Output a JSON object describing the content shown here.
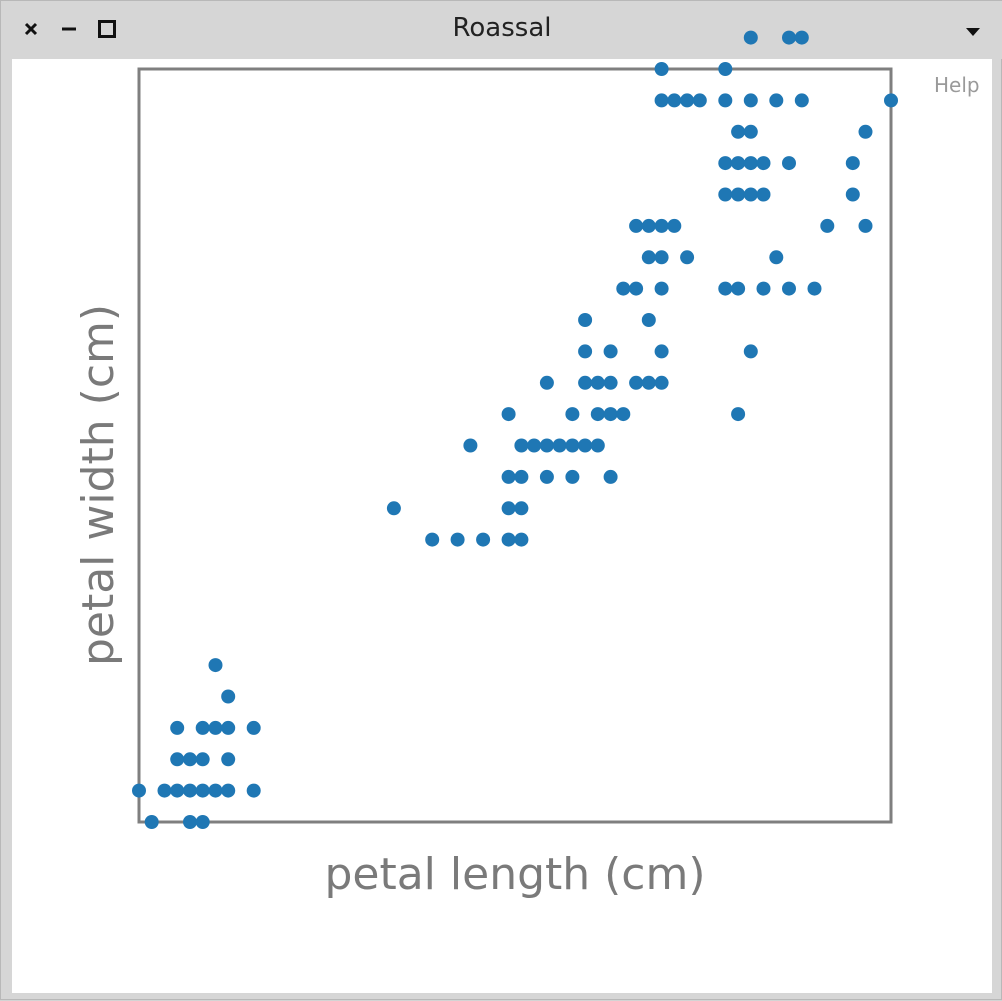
{
  "window": {
    "title": "Roassal",
    "menu_icon": "chevron-down-icon",
    "buttons": [
      "close-icon",
      "minimize-icon",
      "maximize-icon"
    ]
  },
  "help_label": "Help",
  "colors": {
    "point": "#1f77b4",
    "frame": "#7f7f7f",
    "axis_text": "#7a7a7a"
  },
  "chart_data": {
    "type": "scatter",
    "title": "",
    "xlabel": "petal length (cm)",
    "ylabel": "petal width (cm)",
    "xlim": [
      1.0,
      6.9
    ],
    "ylim": [
      0.1,
      2.5
    ],
    "grid": false,
    "tick_labels": false,
    "points": [
      [
        1.0,
        0.2
      ],
      [
        1.1,
        0.1
      ],
      [
        1.2,
        0.2
      ],
      [
        1.3,
        0.2
      ],
      [
        1.4,
        0.2
      ],
      [
        1.5,
        0.2
      ],
      [
        1.6,
        0.2
      ],
      [
        1.7,
        0.2
      ],
      [
        1.9,
        0.2
      ],
      [
        1.4,
        0.1
      ],
      [
        1.5,
        0.1
      ],
      [
        1.3,
        0.3
      ],
      [
        1.4,
        0.3
      ],
      [
        1.5,
        0.3
      ],
      [
        1.7,
        0.3
      ],
      [
        1.3,
        0.4
      ],
      [
        1.5,
        0.4
      ],
      [
        1.6,
        0.4
      ],
      [
        1.7,
        0.4
      ],
      [
        1.9,
        0.4
      ],
      [
        1.7,
        0.5
      ],
      [
        1.6,
        0.6
      ],
      [
        3.0,
        1.1
      ],
      [
        3.3,
        1.0
      ],
      [
        3.5,
        1.0
      ],
      [
        3.7,
        1.0
      ],
      [
        3.9,
        1.0
      ],
      [
        4.0,
        1.0
      ],
      [
        3.9,
        1.1
      ],
      [
        4.0,
        1.1
      ],
      [
        3.9,
        1.2
      ],
      [
        4.0,
        1.2
      ],
      [
        4.2,
        1.2
      ],
      [
        4.4,
        1.2
      ],
      [
        4.7,
        1.2
      ],
      [
        3.6,
        1.3
      ],
      [
        4.0,
        1.3
      ],
      [
        4.1,
        1.3
      ],
      [
        4.2,
        1.3
      ],
      [
        4.3,
        1.3
      ],
      [
        4.4,
        1.3
      ],
      [
        4.5,
        1.3
      ],
      [
        4.6,
        1.3
      ],
      [
        3.9,
        1.4
      ],
      [
        4.4,
        1.4
      ],
      [
        4.6,
        1.4
      ],
      [
        4.7,
        1.4
      ],
      [
        4.8,
        1.4
      ],
      [
        5.7,
        1.4
      ],
      [
        4.2,
        1.5
      ],
      [
        4.5,
        1.5
      ],
      [
        4.6,
        1.5
      ],
      [
        4.7,
        1.5
      ],
      [
        4.9,
        1.5
      ],
      [
        5.0,
        1.5
      ],
      [
        5.1,
        1.5
      ],
      [
        4.5,
        1.6
      ],
      [
        4.7,
        1.6
      ],
      [
        5.1,
        1.6
      ],
      [
        5.8,
        1.6
      ],
      [
        4.5,
        1.7
      ],
      [
        5.0,
        1.7
      ],
      [
        4.8,
        1.8
      ],
      [
        4.9,
        1.8
      ],
      [
        5.1,
        1.8
      ],
      [
        5.6,
        1.8
      ],
      [
        5.7,
        1.8
      ],
      [
        5.9,
        1.8
      ],
      [
        6.1,
        1.8
      ],
      [
        6.3,
        1.8
      ],
      [
        5.0,
        1.9
      ],
      [
        5.1,
        1.9
      ],
      [
        5.3,
        1.9
      ],
      [
        6.0,
        1.9
      ],
      [
        4.9,
        2.0
      ],
      [
        5.0,
        2.0
      ],
      [
        5.1,
        2.0
      ],
      [
        5.2,
        2.0
      ],
      [
        6.4,
        2.0
      ],
      [
        6.7,
        2.0
      ],
      [
        5.6,
        2.1
      ],
      [
        5.7,
        2.1
      ],
      [
        5.8,
        2.1
      ],
      [
        5.9,
        2.1
      ],
      [
        6.6,
        2.1
      ],
      [
        5.6,
        2.2
      ],
      [
        5.7,
        2.2
      ],
      [
        5.8,
        2.2
      ],
      [
        5.9,
        2.2
      ],
      [
        6.1,
        2.2
      ],
      [
        6.6,
        2.2
      ],
      [
        5.7,
        2.3
      ],
      [
        5.8,
        2.3
      ],
      [
        6.7,
        2.3
      ],
      [
        5.1,
        2.4
      ],
      [
        5.2,
        2.4
      ],
      [
        5.3,
        2.4
      ],
      [
        5.4,
        2.4
      ],
      [
        5.6,
        2.4
      ],
      [
        5.8,
        2.4
      ],
      [
        6.0,
        2.4
      ],
      [
        6.2,
        2.4
      ],
      [
        6.9,
        2.4
      ],
      [
        5.1,
        2.5
      ],
      [
        5.6,
        2.5
      ],
      [
        5.8,
        2.6
      ],
      [
        6.1,
        2.6
      ],
      [
        6.2,
        2.6
      ]
    ]
  }
}
